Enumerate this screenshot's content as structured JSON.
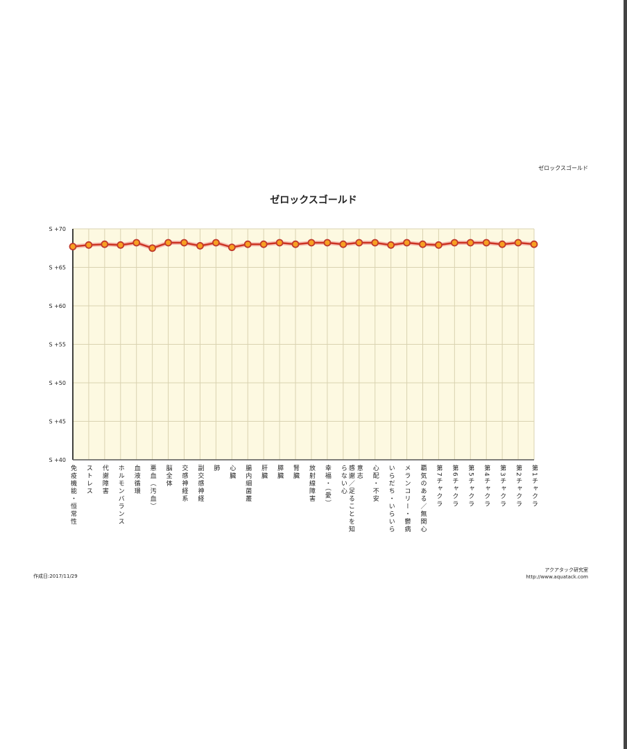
{
  "header": {
    "label": "ゼロックスゴールド"
  },
  "footer": {
    "date": "作成日:2017/11/29",
    "org": "アクアタック研究室",
    "url": "http://www.aquatack.com"
  },
  "colors": {
    "background": "#fdf9e1",
    "grid": "#d9d2b0",
    "line": "#cc3322",
    "marker_fill": "#f7a021",
    "marker_stroke": "#c0392b"
  },
  "chart_data": {
    "type": "line",
    "title": "ゼロックスゴールド",
    "ylim": [
      40,
      70
    ],
    "yticks": [
      40,
      45,
      50,
      55,
      60,
      65,
      70
    ],
    "ytick_labels": [
      "S +40",
      "S +45",
      "S +50",
      "S +55",
      "S +60",
      "S +65",
      "S +70"
    ],
    "grid": true,
    "categories": [
      "免疫機能・恒常性",
      "ストレス",
      "代謝障害",
      "ホルモンバランス",
      "血液循環",
      "悪血（汚血）",
      "脳全体",
      "交感神経系",
      "副交感神経",
      "肺",
      "心臓",
      "腸内細菌叢",
      "肝臓",
      "膵臓",
      "腎臓",
      "放射線障害",
      "幸福・（愛）",
      "感謝／足ることを知らない心",
      "意志",
      "心配・不安",
      "いらだち・いらいら",
      "メランコリー・鬱病",
      "覇気のある／無関心",
      "第7チャクラ",
      "第6チャクラ",
      "第5チャクラ",
      "第4チャクラ",
      "第3チャクラ",
      "第2チャクラ",
      "第1チャクラ"
    ],
    "values": [
      67.7,
      67.9,
      68.0,
      67.9,
      68.2,
      67.5,
      68.2,
      68.2,
      67.8,
      68.2,
      67.6,
      68.0,
      68.0,
      68.2,
      68.0,
      68.2,
      68.2,
      68.0,
      68.2,
      68.2,
      67.9,
      68.2,
      68.0,
      67.9,
      68.2,
      68.2,
      68.2,
      68.0,
      68.2,
      68.0
    ]
  }
}
